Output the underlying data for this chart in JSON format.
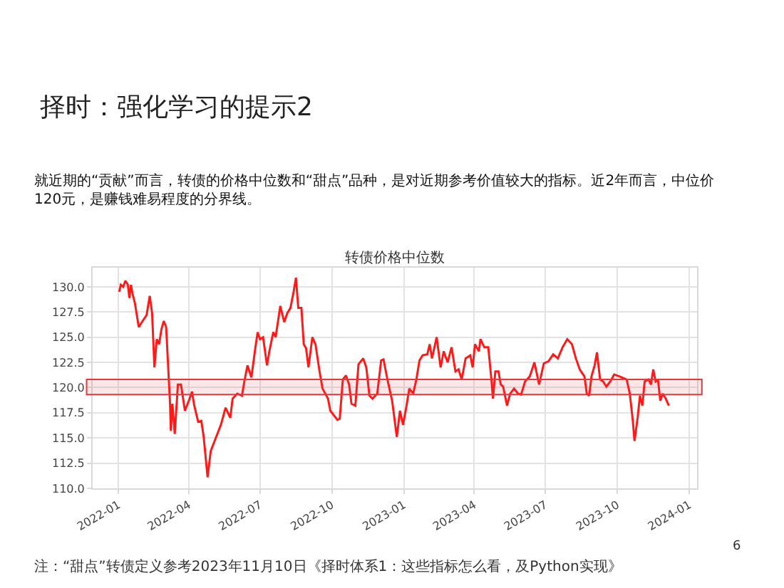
{
  "chart_data": {
    "type": "line",
    "title": "择时：强化学习的提示2",
    "subtitle": "就近期的“贡献”而言，转债的价格中位数和“甜点”品种，是对近期参考价值较大的指标。近2年而言，中位价\n120元，是赚钱难易程度的分界线。",
    "annotations": [
      "转债价格中位数",
      "注：“甜点”转债定义参考2023年11月10日《择时体系1：这些指标怎么看，及Python实现》",
      "6"
    ],
    "x": [
      "2022-01-02",
      "2022-01-04",
      "2022-01-07",
      "2022-01-10",
      "2022-01-13",
      "2022-01-15",
      "2022-01-17",
      "2022-01-19",
      "2022-01-22",
      "2022-01-27",
      "2022-01-31",
      "2022-02-06",
      "2022-02-10",
      "2022-02-13",
      "2022-02-16",
      "2022-02-19",
      "2022-02-22",
      "2022-02-25",
      "2022-02-28",
      "2022-03-03",
      "2022-03-08",
      "2022-03-09",
      "2022-03-11",
      "2022-03-14",
      "2022-03-18",
      "2022-03-22",
      "2022-03-27",
      "2022-04-02",
      "2022-04-05",
      "2022-04-08",
      "2022-04-13",
      "2022-04-17",
      "2022-04-20",
      "2022-04-25",
      "2022-04-29",
      "2022-05-06",
      "2022-05-12",
      "2022-05-18",
      "2022-05-24",
      "2022-05-27",
      "2022-06-02",
      "2022-06-08",
      "2022-06-11",
      "2022-06-15",
      "2022-06-20",
      "2022-06-25",
      "2022-06-28",
      "2022-07-01",
      "2022-07-05",
      "2022-07-10",
      "2022-07-13",
      "2022-07-18",
      "2022-07-21",
      "2022-07-27",
      "2022-08-01",
      "2022-08-05",
      "2022-08-09",
      "2022-08-13",
      "2022-08-16",
      "2022-08-19",
      "2022-08-23",
      "2022-08-26",
      "2022-08-29",
      "2022-09-01",
      "2022-09-06",
      "2022-09-10",
      "2022-09-15",
      "2022-09-19",
      "2022-09-26",
      "2022-09-29",
      "2022-10-08",
      "2022-10-11",
      "2022-10-15",
      "2022-10-19",
      "2022-10-23",
      "2022-10-26",
      "2022-10-31",
      "2022-11-04",
      "2022-11-10",
      "2022-11-14",
      "2022-11-18",
      "2022-11-22",
      "2022-11-28",
      "2022-12-03",
      "2022-12-06",
      "2022-12-11",
      "2022-12-17",
      "2022-12-23",
      "2022-12-27",
      "2022-12-31",
      "2023-01-04",
      "2023-01-08",
      "2023-01-13",
      "2023-01-17",
      "2023-01-21",
      "2023-01-25",
      "2023-01-31",
      "2023-02-03",
      "2023-02-06",
      "2023-02-12",
      "2023-02-17",
      "2023-02-21",
      "2023-02-26",
      "2023-03-03",
      "2023-03-08",
      "2023-03-12",
      "2023-03-16",
      "2023-03-21",
      "2023-03-27",
      "2023-03-30",
      "2023-04-02",
      "2023-04-07",
      "2023-04-09",
      "2023-04-14",
      "2023-04-19",
      "2023-04-23",
      "2023-04-25",
      "2023-04-28",
      "2023-05-02",
      "2023-05-05",
      "2023-05-08",
      "2023-05-13",
      "2023-05-17",
      "2023-05-22",
      "2023-05-27",
      "2023-05-31",
      "2023-06-05",
      "2023-06-11",
      "2023-06-17",
      "2023-06-23",
      "2023-06-29",
      "2023-07-05",
      "2023-07-11",
      "2023-07-17",
      "2023-07-23",
      "2023-07-29",
      "2023-08-04",
      "2023-08-09",
      "2023-08-14",
      "2023-08-20",
      "2023-08-23",
      "2023-08-26",
      "2023-08-29",
      "2023-09-02",
      "2023-09-05",
      "2023-09-09",
      "2023-09-13",
      "2023-09-17",
      "2023-09-22",
      "2023-09-27",
      "2023-10-04",
      "2023-10-13",
      "2023-10-17",
      "2023-10-21",
      "2023-10-23",
      "2023-10-27",
      "2023-10-30",
      "2023-11-02",
      "2023-11-05",
      "2023-11-10",
      "2023-11-13",
      "2023-11-16",
      "2023-11-19",
      "2023-11-22",
      "2023-11-25",
      "2023-11-28",
      "2023-12-02",
      "2023-12-06"
    ],
    "series": [
      {
        "color": "#ff1a1a",
        "values": [
          129.5,
          130.2,
          130,
          130.6,
          130.2,
          128.9,
          130.2,
          129.3,
          128.4,
          126,
          126.5,
          127.2,
          129.1,
          127.4,
          122,
          124.8,
          124.3,
          125.8,
          126.6,
          126,
          118.4,
          115.7,
          118.4,
          115.4,
          120.3,
          120.3,
          117.7,
          118.9,
          119.6,
          118.2,
          116.6,
          116.7,
          115.1,
          111.1,
          113.7,
          115.1,
          116.3,
          118,
          117,
          118.9,
          119.4,
          119.2,
          120.6,
          122.2,
          121,
          123.9,
          125.5,
          124.8,
          125,
          122.2,
          123.6,
          125.5,
          125,
          128.1,
          126.5,
          127.4,
          127.9,
          129.5,
          130.9,
          127.9,
          127.9,
          124.3,
          123.9,
          122,
          125,
          124.3,
          121.7,
          119.9,
          118.9,
          117.7,
          116.8,
          116.9,
          120.8,
          121.2,
          120.3,
          118.4,
          118.2,
          122.3,
          122.9,
          122,
          119.2,
          118.9,
          119.4,
          122.7,
          122.8,
          120.8,
          118.7,
          115.1,
          117.7,
          116.3,
          118,
          119.9,
          119.4,
          120.8,
          122.7,
          123.2,
          123.3,
          124.3,
          122.9,
          125,
          122,
          123.6,
          122.5,
          124,
          121.6,
          121.8,
          120.8,
          122.9,
          123.2,
          122,
          124.3,
          123.6,
          124.8,
          124,
          124,
          120.8,
          118.9,
          121.6,
          121.6,
          120.3,
          120.1,
          118.2,
          119.4,
          119.9,
          119.4,
          119.3,
          120.6,
          121.1,
          122.5,
          120.3,
          122.4,
          122.6,
          123.3,
          122.9,
          124,
          124.8,
          124.3,
          122.9,
          121.8,
          121.1,
          119.4,
          119.2,
          121.1,
          122.2,
          123.5,
          120.8,
          120.6,
          120.1,
          120.6,
          121.3,
          121.1,
          120.8,
          119.4,
          116.6,
          114.7,
          117,
          119.2,
          118.2,
          120.6,
          120.8,
          120.3,
          121.8,
          120.6,
          120.8,
          118.7,
          119.4,
          118.9,
          118.2
        ]
      }
    ],
    "xlim": [
      "2021-11-29",
      "2024-01-11"
    ],
    "xticks": [
      "2022-01",
      "2022-04",
      "2022-07",
      "2022-10",
      "2023-01",
      "2023-04",
      "2023-07",
      "2023-10",
      "2024-01"
    ],
    "ylim": [
      110,
      131.9
    ],
    "yticks": [
      {
        "value": 110,
        "label": "110.0"
      },
      {
        "value": 112.5,
        "label": "112.5"
      },
      {
        "value": 115,
        "label": "115.0"
      },
      {
        "value": 117.5,
        "label": "117.5"
      },
      {
        "value": 120,
        "label": "120.0"
      },
      {
        "value": 122.5,
        "label": "122.5"
      },
      {
        "value": 125,
        "label": "125.0"
      },
      {
        "value": 127.5,
        "label": "127.5"
      },
      {
        "value": 130,
        "label": "130.0"
      }
    ],
    "bands": [
      {
        "axis": "y",
        "from": 119.3,
        "to": 120.8,
        "color": "#e0393e"
      }
    ],
    "grid": true,
    "line_style": "solid",
    "marker": "none"
  }
}
